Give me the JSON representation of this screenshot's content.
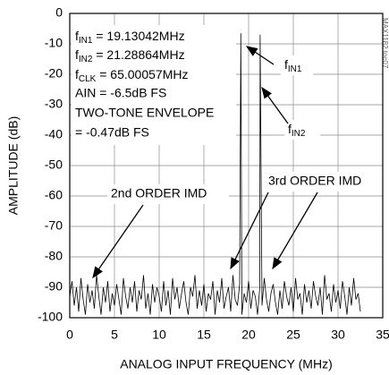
{
  "chart_data": {
    "type": "line",
    "xlabel": "ANALOG INPUT FREQUENCY (MHz)",
    "ylabel": "AMPLITUDE (dB)",
    "x": [
      0,
      0.25,
      0.5,
      0.75,
      1,
      1.25,
      1.5,
      1.75,
      2,
      2.25,
      2.5,
      2.75,
      3,
      3.25,
      3.5,
      3.75,
      4,
      4.25,
      4.5,
      4.75,
      5,
      5.25,
      5.5,
      5.75,
      6,
      6.25,
      6.5,
      6.75,
      7,
      7.25,
      7.5,
      7.75,
      8,
      8.25,
      8.5,
      8.75,
      9,
      9.25,
      9.5,
      9.75,
      10,
      10.25,
      10.5,
      10.75,
      11,
      11.25,
      11.5,
      11.75,
      12,
      12.25,
      12.5,
      12.75,
      13,
      13.25,
      13.5,
      13.75,
      14,
      14.25,
      14.5,
      14.75,
      15,
      15.25,
      15.5,
      15.75,
      16,
      16.25,
      16.5,
      16.75,
      17,
      17.25,
      17.5,
      17.75,
      18,
      18.25,
      18.5,
      18.75,
      19,
      19.13042,
      19.25,
      19.5,
      19.75,
      20,
      20.25,
      20.5,
      20.75,
      21,
      21.25,
      21.28864,
      21.5,
      21.75,
      22,
      22.25,
      22.5,
      22.75,
      23,
      23.25,
      23.5,
      23.75,
      24,
      24.25,
      24.5,
      24.75,
      25,
      25.25,
      25.5,
      25.75,
      26,
      26.25,
      26.5,
      26.75,
      27,
      27.25,
      27.5,
      27.75,
      28,
      28.25,
      28.5,
      28.75,
      29,
      29.25,
      29.5,
      29.75,
      30,
      30.25,
      30.5,
      30.75,
      31,
      31.25,
      31.5,
      31.75,
      32,
      32.25,
      32.5
    ],
    "series": [
      {
        "color": "#000000",
        "values": [
          -93,
          -88,
          -96,
          -90,
          -98,
          -87,
          -94,
          -99,
          -89,
          -95,
          -91,
          -97,
          -86,
          -93,
          -99,
          -90,
          -95,
          -88,
          -98,
          -92,
          -96,
          -89,
          -94,
          -99,
          -87,
          -93,
          -97,
          -90,
          -95,
          -88,
          -98,
          -91,
          -94,
          -86,
          -97,
          -92,
          -99,
          -89,
          -95,
          -90,
          -93,
          -98,
          -88,
          -96,
          -91,
          -99,
          -87,
          -94,
          -90,
          -97,
          -92,
          -88,
          -95,
          -99,
          -90,
          -93,
          -86,
          -97,
          -91,
          -96,
          -89,
          -98,
          -92,
          -94,
          -88,
          -99,
          -91,
          -95,
          -87,
          -97,
          -93,
          -90,
          -98,
          -86,
          -94,
          -96,
          -89,
          -6.5,
          -99,
          -92,
          -95,
          -88,
          -97,
          -91,
          -93,
          -99,
          -90,
          -7,
          -96,
          -87,
          -94,
          -98,
          -92,
          -89,
          -95,
          -99,
          -91,
          -97,
          -88,
          -93,
          -96,
          -90,
          -98,
          -87,
          -94,
          -92,
          -99,
          -89,
          -95,
          -91,
          -97,
          -88,
          -93,
          -96,
          -90,
          -99,
          -86,
          -94,
          -92,
          -98,
          -89,
          -95,
          -91,
          -97,
          -88,
          -93,
          -99,
          -90,
          -96,
          -87,
          -94,
          -92,
          -98
        ]
      }
    ],
    "xlim": [
      0,
      35
    ],
    "xticks": [
      0,
      5,
      10,
      15,
      20,
      25,
      30,
      35
    ],
    "ylim": [
      -100,
      0
    ],
    "yticks": [
      0,
      -10,
      -20,
      -30,
      -40,
      -50,
      -60,
      -70,
      -80,
      -90,
      -100
    ],
    "grid": true,
    "annotations": {
      "lines": [
        {
          "text": "f",
          "sub": "IN1",
          "rest": " = 19.13042MHz"
        },
        {
          "text": "f",
          "sub": "IN2",
          "rest": " = 21.28864MHz"
        },
        {
          "text": "f",
          "sub": "CLK",
          "rest": " = 65.00057MHz"
        },
        "AIN = -6.5dB FS",
        "TWO-TONE ENVELOPE",
        "= -0.47dB FS"
      ],
      "fin1": {
        "text": "f",
        "sub": "IN1"
      },
      "fin2": {
        "text": "f",
        "sub": "IN2"
      },
      "imd2": "2nd ORDER IMD",
      "imd3": "3rd ORDER IMD"
    },
    "watermark": "MAX1182 toc07"
  }
}
